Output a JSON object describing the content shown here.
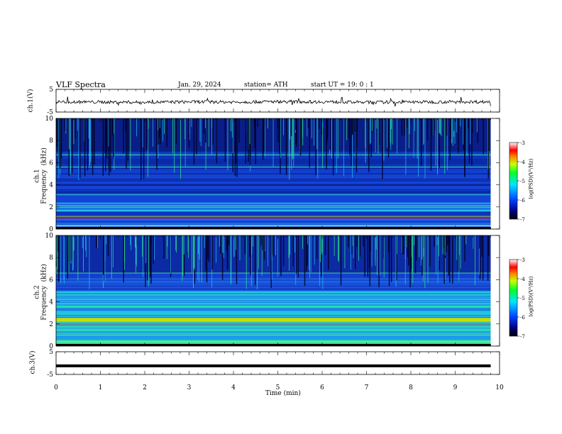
{
  "header": {
    "title": "VLF  Spectra",
    "date": "Jan. 29, 2024",
    "station": "station= ATH",
    "start": "start  UT  =    19: 0   : 1"
  },
  "colors": {
    "low": "#000080",
    "mid_low": "#0000ff",
    "mid": "#00ffff",
    "mid_high": "#00ff00",
    "high": "#ff0000",
    "top": "#ffffff"
  },
  "chart_data": [
    {
      "type": "line",
      "panel": "ch1-waveform",
      "ylabel": "ch.1(V)",
      "yticks": [
        "5",
        "-5"
      ],
      "ylim": [
        -5,
        5
      ],
      "x": [
        0,
        1,
        2,
        3,
        4,
        5,
        6,
        7,
        8,
        9,
        9.8
      ],
      "values": [
        -0.5,
        -0.6,
        -0.7,
        -0.5,
        -0.6,
        -0.4,
        -0.5,
        -0.7,
        -0.6,
        -0.5,
        -0.5
      ],
      "grid": false
    },
    {
      "type": "heatmap",
      "panel": "ch1-spectrogram",
      "ylabel": "ch.1\nFrequency  (kHz)",
      "yticks": [
        "0",
        "2",
        "4",
        "6",
        "8",
        "10"
      ],
      "ylim": [
        0,
        10
      ],
      "colorbar": {
        "label": "log(PSD)(V²/Hz)",
        "ticks": [
          "-3",
          "-4",
          "-5",
          "-6",
          "-7"
        ],
        "range": [
          -7,
          -3
        ]
      }
    },
    {
      "type": "heatmap",
      "panel": "ch2-spectrogram",
      "ylabel": "ch.2\nFrequency  (kHz)",
      "yticks": [
        "0",
        "2",
        "4",
        "6",
        "8",
        "10"
      ],
      "ylim": [
        0,
        10
      ],
      "colorbar": {
        "label": "log(PSD)(V²/Hz)",
        "ticks": [
          "-3",
          "-4",
          "-5",
          "-6",
          "-7"
        ],
        "range": [
          -7,
          -3
        ]
      }
    },
    {
      "type": "line",
      "panel": "ch3-waveform",
      "ylabel": "ch.3(V)",
      "yticks": [
        "5",
        "-5"
      ],
      "ylim": [
        -5,
        5
      ],
      "x": [
        0,
        9.8
      ],
      "values": [
        -1.2,
        -1.2
      ],
      "grid": false
    }
  ],
  "xaxis": {
    "label": "Time  (min)",
    "ticks": [
      "0",
      "1",
      "2",
      "3",
      "4",
      "5",
      "6",
      "7",
      "8",
      "9",
      "10"
    ],
    "range": [
      0,
      10
    ]
  }
}
